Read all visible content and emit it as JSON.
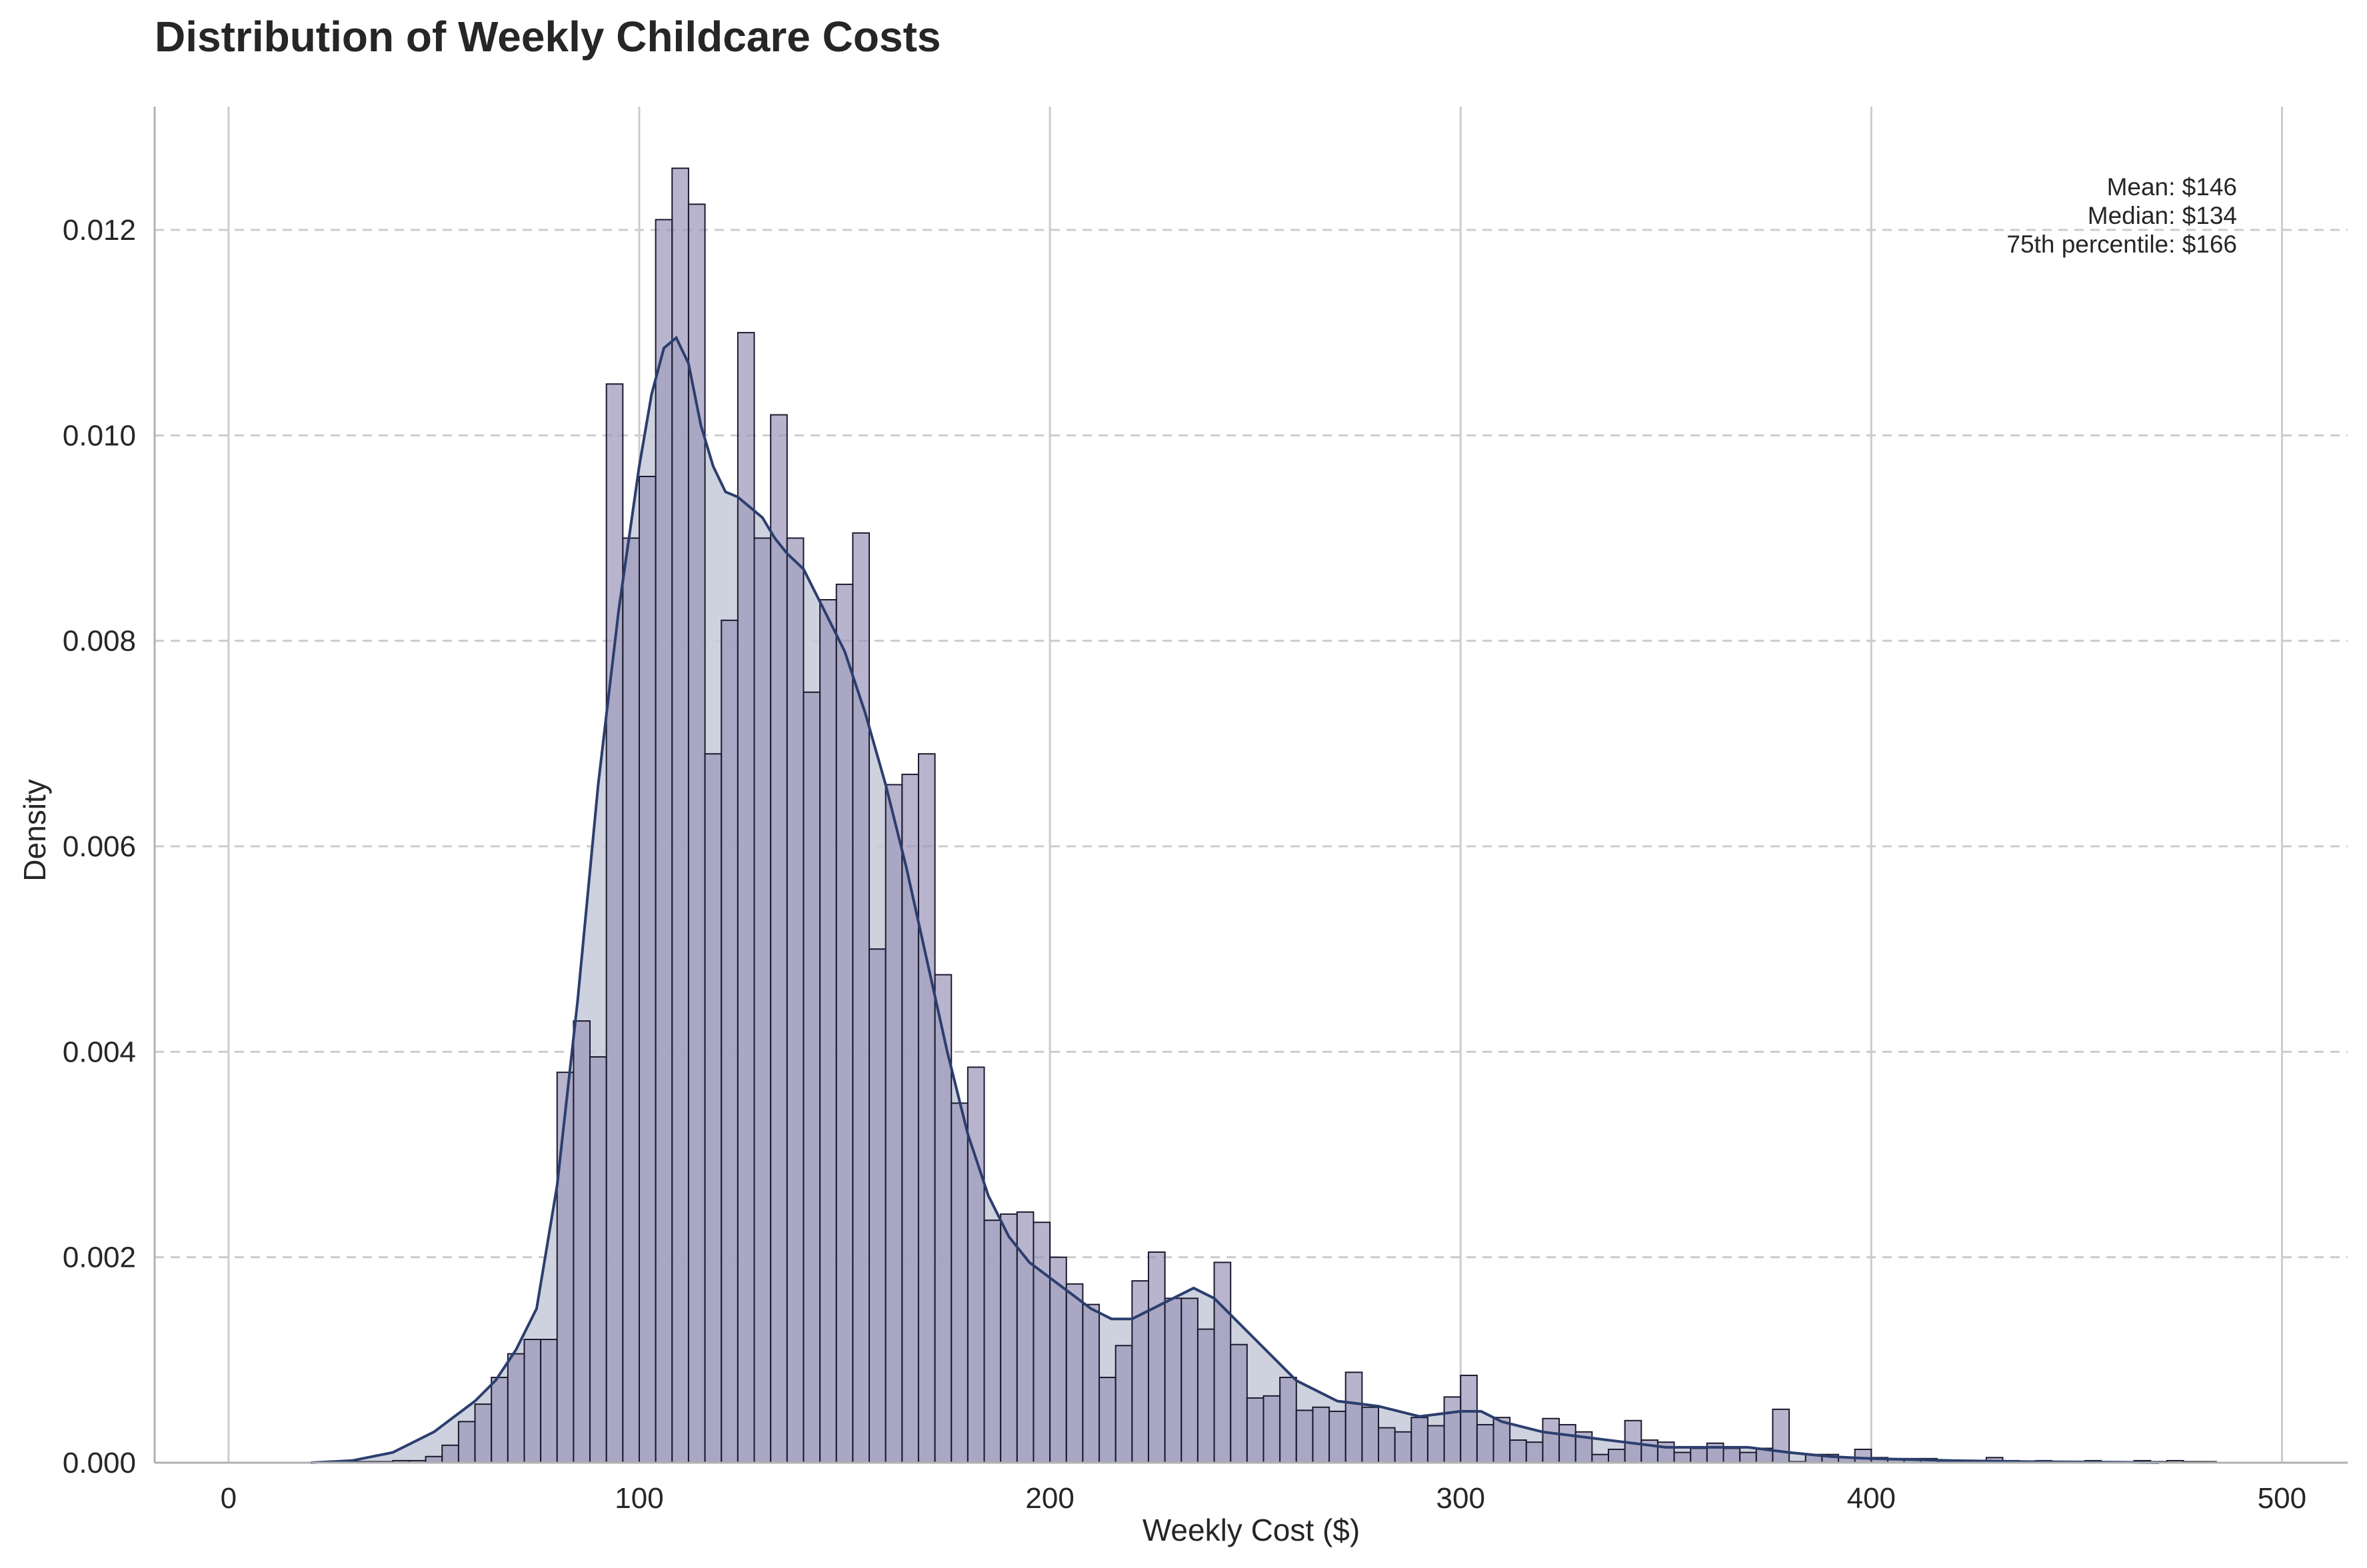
{
  "chart_data": {
    "type": "bar",
    "subtype": "histogram-with-kde",
    "title": "Distribution of Weekly Childcare Costs",
    "xlabel": "Weekly Cost ($)",
    "ylabel": "Density",
    "xlim": [
      -18,
      516
    ],
    "ylim": [
      0,
      0.0132
    ],
    "x_ticks": [
      0,
      100,
      200,
      300,
      400,
      500
    ],
    "x_tick_labels": [
      "0",
      "100",
      "200",
      "300",
      "400",
      "500"
    ],
    "y_ticks": [
      0,
      0.002,
      0.004,
      0.006,
      0.008,
      0.01,
      0.012
    ],
    "y_tick_labels": [
      "0.000",
      "0.002",
      "0.004",
      "0.006",
      "0.008",
      "0.010",
      "0.012"
    ],
    "grid": {
      "x": "solid",
      "y": "dashed"
    },
    "bin_start": 28,
    "bin_width": 4,
    "bar_values": [
      1e-05,
      1e-05,
      1e-05,
      2e-05,
      2e-05,
      6e-05,
      0.00017,
      0.0004,
      0.00057,
      0.00083,
      0.00106,
      0.0012,
      0.0012,
      0.0038,
      0.0043,
      0.00395,
      0.0105,
      0.009,
      0.0096,
      0.0121,
      0.0126,
      0.01225,
      0.0069,
      0.0082,
      0.011,
      0.009,
      0.0102,
      0.009,
      0.0075,
      0.0084,
      0.00855,
      0.00905,
      0.005,
      0.0066,
      0.0067,
      0.0069,
      0.00475,
      0.0035,
      0.00385,
      0.00236,
      0.00242,
      0.00244,
      0.00234,
      0.002,
      0.00174,
      0.00154,
      0.00083,
      0.00114,
      0.00177,
      0.00205,
      0.0016,
      0.0016,
      0.0013,
      0.00195,
      0.00115,
      0.00063,
      0.00065,
      0.00083,
      0.00051,
      0.00054,
      0.0005,
      0.00088,
      0.00054,
      0.00034,
      0.0003,
      0.00044,
      0.00036,
      0.00064,
      0.00085,
      0.00037,
      0.00044,
      0.00022,
      0.0002,
      0.00043,
      0.00037,
      0.0003,
      8e-05,
      0.00013,
      0.00041,
      0.00022,
      0.0002,
      0.0001,
      0.00014,
      0.00019,
      0.00014,
      0.0001,
      0.00014,
      0.00052,
      1e-05,
      8e-05,
      8e-05,
      5e-05,
      0.00013,
      5e-05,
      4e-05,
      4e-05,
      4e-05,
      1e-05,
      1e-05,
      1e-05,
      5e-05,
      2e-05,
      1e-05,
      2e-05,
      1e-05,
      1e-05,
      2e-05,
      1e-05,
      1e-05,
      2e-05,
      1e-05,
      2e-05,
      1e-05,
      1e-05
    ],
    "kde_x": [
      20,
      30,
      40,
      50,
      55,
      60,
      65,
      70,
      75,
      80,
      85,
      90,
      95,
      100,
      103,
      106,
      109,
      112,
      115,
      118,
      121,
      124,
      127,
      130,
      133,
      136,
      140,
      145,
      150,
      155,
      160,
      165,
      170,
      175,
      180,
      185,
      190,
      195,
      200,
      205,
      210,
      215,
      220,
      225,
      230,
      235,
      240,
      245,
      250,
      255,
      260,
      270,
      280,
      290,
      300,
      305,
      310,
      320,
      330,
      340,
      350,
      360,
      370,
      380,
      390,
      400,
      420,
      440,
      460,
      470
    ],
    "kde_y": [
      0,
      2e-05,
      0.0001,
      0.0003,
      0.00045,
      0.0006,
      0.0008,
      0.0011,
      0.0015,
      0.0027,
      0.0045,
      0.0066,
      0.0083,
      0.0097,
      0.0104,
      0.01085,
      0.01095,
      0.0107,
      0.0101,
      0.0097,
      0.00945,
      0.0094,
      0.0093,
      0.0092,
      0.009,
      0.00885,
      0.0087,
      0.0083,
      0.0079,
      0.0073,
      0.0066,
      0.0058,
      0.0049,
      0.004,
      0.0032,
      0.0026,
      0.0022,
      0.00195,
      0.0018,
      0.00165,
      0.0015,
      0.0014,
      0.0014,
      0.0015,
      0.0016,
      0.0017,
      0.0016,
      0.0014,
      0.0012,
      0.001,
      0.0008,
      0.0006,
      0.00055,
      0.00045,
      0.0005,
      0.0005,
      0.0004,
      0.0003,
      0.00025,
      0.0002,
      0.00015,
      0.00015,
      0.00015,
      0.0001,
      6e-05,
      4e-05,
      2e-05,
      1e-05,
      5e-06,
      0
    ],
    "annotations": [
      "Mean: $146",
      "Median: $134",
      "75th percentile: $166"
    ],
    "annotation_placement": "top-right",
    "colors": {
      "bar_fill": "#9a94b8",
      "bar_edge": "#1a1a2e",
      "kde_line": "#2c3e6e",
      "kde_fill": "#c4cad8",
      "grid": "#cccccc",
      "axis": "#b0b0b0"
    }
  }
}
